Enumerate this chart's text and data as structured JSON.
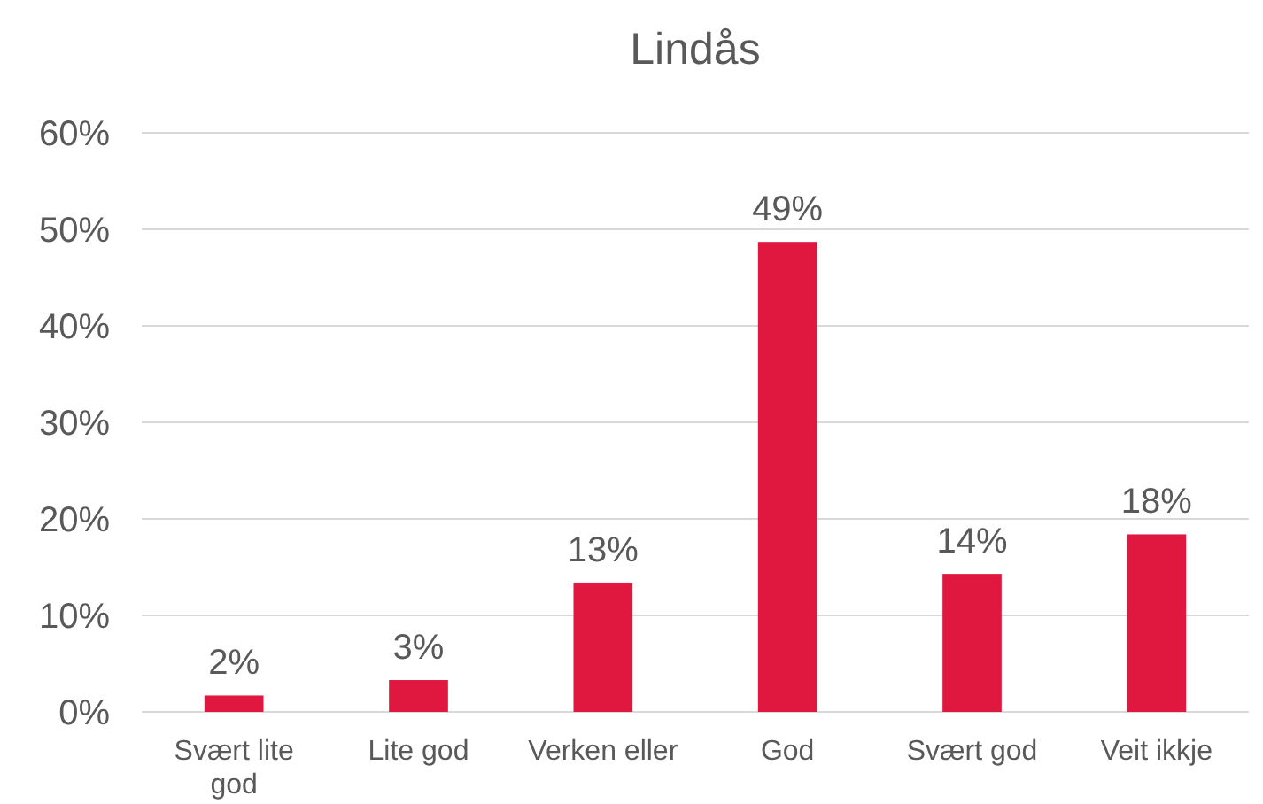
{
  "chart_data": {
    "type": "bar",
    "title": "Lindås",
    "categories": [
      "Svært lite god",
      "Lite god",
      "Verken eller",
      "God",
      "Svært god",
      "Veit ikkje"
    ],
    "values": [
      1.7,
      3.3,
      13.4,
      48.7,
      14.3,
      18.4
    ],
    "value_labels": [
      "2%",
      "3%",
      "13%",
      "49%",
      "14%",
      "18%"
    ],
    "color": "#e0173f",
    "ylim": [
      0,
      60
    ],
    "yticks": [
      {
        "value": 0,
        "label": "0%"
      },
      {
        "value": 10,
        "label": "10%"
      },
      {
        "value": 20,
        "label": "20%"
      },
      {
        "value": 30,
        "label": "30%"
      },
      {
        "value": 40,
        "label": "40%"
      },
      {
        "value": 50,
        "label": "50%"
      },
      {
        "value": 60,
        "label": "60%"
      }
    ],
    "grid": "y"
  }
}
